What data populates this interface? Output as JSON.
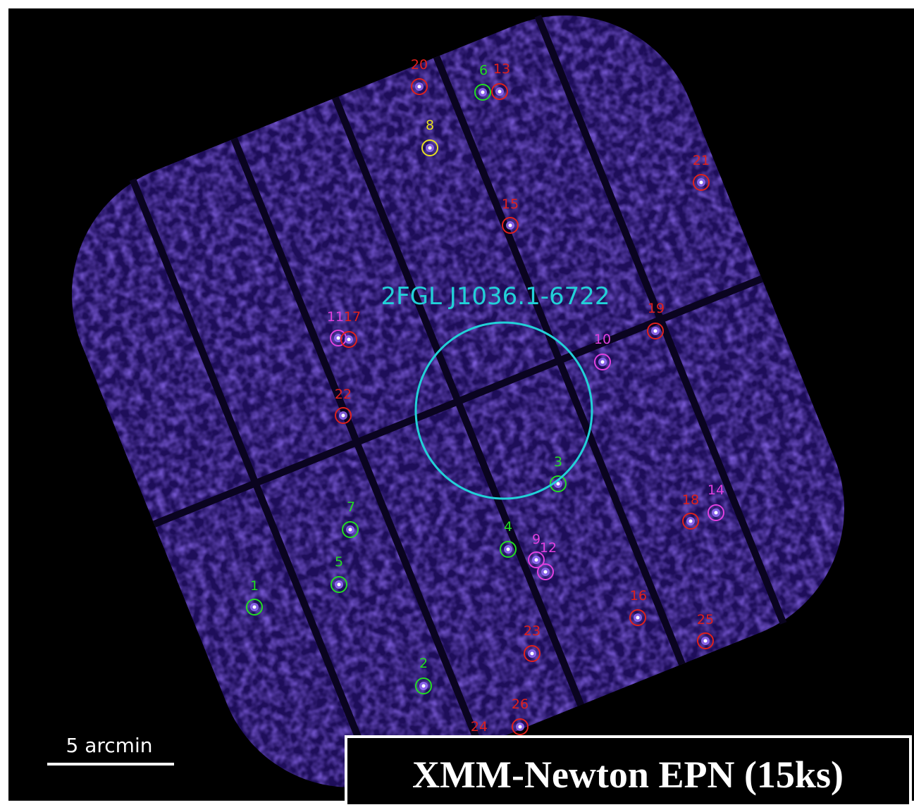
{
  "image": {
    "target": {
      "label": "2FGL J1036.1-6722",
      "color": "#22d0d8"
    },
    "scale_bar": {
      "label": "5 arcmin"
    },
    "caption": "XMM-Newton EPN (15ks)",
    "sources": [
      {
        "label": "20",
        "color": "#e0201c"
      },
      {
        "label": "6",
        "color": "#22dd22"
      },
      {
        "label": "13",
        "color": "#e0201c"
      },
      {
        "label": "8",
        "color": "#e8e020"
      },
      {
        "label": "21",
        "color": "#e0201c"
      },
      {
        "label": "15",
        "color": "#e0201c"
      },
      {
        "label": "19",
        "color": "#e0201c"
      },
      {
        "label": "11",
        "color": "#e040e0"
      },
      {
        "label": "17",
        "color": "#e0201c"
      },
      {
        "label": "10",
        "color": "#e040e0"
      },
      {
        "label": "22",
        "color": "#e0201c"
      },
      {
        "label": "3",
        "color": "#22dd22"
      },
      {
        "label": "18",
        "color": "#e0201c"
      },
      {
        "label": "14",
        "color": "#e040e0"
      },
      {
        "label": "7",
        "color": "#22dd22"
      },
      {
        "label": "4",
        "color": "#22dd22"
      },
      {
        "label": "9",
        "color": "#e040e0"
      },
      {
        "label": "12",
        "color": "#e040e0"
      },
      {
        "label": "5",
        "color": "#22dd22"
      },
      {
        "label": "1",
        "color": "#22dd22"
      },
      {
        "label": "16",
        "color": "#e0201c"
      },
      {
        "label": "25",
        "color": "#e0201c"
      },
      {
        "label": "23",
        "color": "#e0201c"
      },
      {
        "label": "2",
        "color": "#22dd22"
      },
      {
        "label": "26",
        "color": "#e0201c"
      },
      {
        "label": "24",
        "color": "#e0201c"
      }
    ]
  }
}
